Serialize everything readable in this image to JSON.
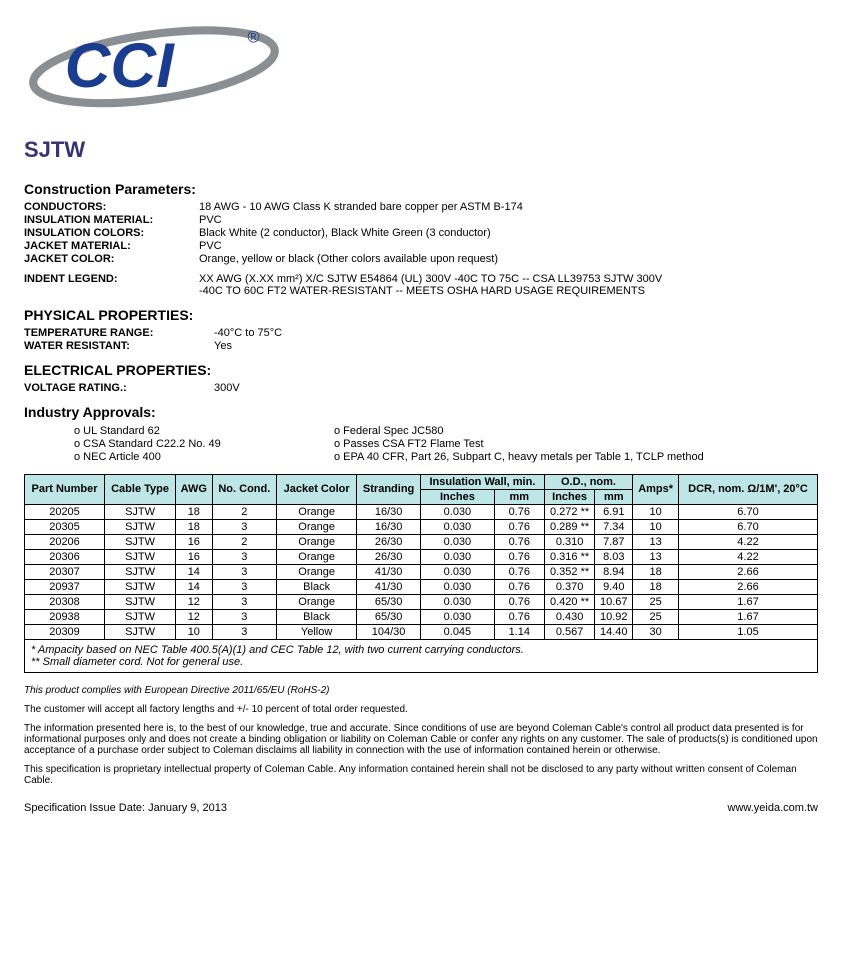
{
  "logo": {
    "text_color": "#1a3d8f",
    "swoosh_color": "#8a8f94",
    "trademark": "®"
  },
  "title": "SJTW",
  "construction": {
    "heading": "Construction Parameters:",
    "items": [
      {
        "label": "CONDUCTORS:",
        "value": "18 AWG - 10 AWG Class K stranded bare copper per ASTM B-174"
      },
      {
        "label": "INSULATION MATERIAL:",
        "value": "PVC"
      },
      {
        "label": "INSULATION COLORS:",
        "value": "Black White (2 conductor), Black White Green (3 conductor)"
      },
      {
        "label": "JACKET MATERIAL:",
        "value": "PVC"
      },
      {
        "label": "JACKET COLOR:",
        "value": "Orange, yellow or black (Other colors available upon request)"
      }
    ],
    "indent_label": "INDENT LEGEND:",
    "indent_line1": "XX AWG (X.XX mm²) X/C SJTW E54864 (UL) 300V -40C TO 75C -- CSA LL39753 SJTW 300V",
    "indent_line2": "-40C TO 60C FT2 WATER-RESISTANT -- MEETS OSHA HARD USAGE REQUIREMENTS"
  },
  "physical": {
    "heading": "PHYSICAL PROPERTIES:",
    "items": [
      {
        "label": "TEMPERATURE RANGE:",
        "value": "-40°C to 75°C"
      },
      {
        "label": "WATER RESISTANT:",
        "value": "Yes"
      }
    ]
  },
  "electrical": {
    "heading": "ELECTRICAL PROPERTIES:",
    "items": [
      {
        "label": "VOLTAGE RATING.:",
        "value": "300V"
      }
    ]
  },
  "approvals": {
    "heading": "Industry Approvals:",
    "col1": [
      "o UL Standard 62",
      "o CSA Standard C22.2 No. 49",
      "o NEC Article 400"
    ],
    "col2": [
      "o Federal Spec JC580",
      "o Passes CSA FT2 Flame Test",
      "o EPA 40 CFR, Part 26, Subpart C, heavy metals per Table 1, TCLP method"
    ]
  },
  "table": {
    "header_bg": "#bfe6e6",
    "top_headers": {
      "part": "Part Number",
      "cable": "Cable Type",
      "awg": "AWG",
      "cond": "No. Cond.",
      "jacket": "Jacket Color",
      "stranding": "Stranding",
      "insul": "Insulation Wall, min.",
      "od": "O.D., nom.",
      "amps": "Amps*",
      "dcr": "DCR, nom. Ω/1M', 20°C",
      "inches": "Inches",
      "mm": "mm"
    },
    "rows": [
      [
        "20205",
        "SJTW",
        "18",
        "2",
        "Orange",
        "16/30",
        "0.030",
        "0.76",
        "0.272 **",
        "6.91",
        "10",
        "6.70"
      ],
      [
        "20305",
        "SJTW",
        "18",
        "3",
        "Orange",
        "16/30",
        "0.030",
        "0.76",
        "0.289 **",
        "7.34",
        "10",
        "6.70"
      ],
      [
        "20206",
        "SJTW",
        "16",
        "2",
        "Orange",
        "26/30",
        "0.030",
        "0.76",
        "0.310",
        "7.87",
        "13",
        "4.22"
      ],
      [
        "20306",
        "SJTW",
        "16",
        "3",
        "Orange",
        "26/30",
        "0.030",
        "0.76",
        "0.316 **",
        "8.03",
        "13",
        "4.22"
      ],
      [
        "20307",
        "SJTW",
        "14",
        "3",
        "Orange",
        "41/30",
        "0.030",
        "0.76",
        "0.352 **",
        "8.94",
        "18",
        "2.66"
      ],
      [
        "20937",
        "SJTW",
        "14",
        "3",
        "Black",
        "41/30",
        "0.030",
        "0.76",
        "0.370",
        "9.40",
        "18",
        "2.66"
      ],
      [
        "20308",
        "SJTW",
        "12",
        "3",
        "Orange",
        "65/30",
        "0.030",
        "0.76",
        "0.420 **",
        "10.67",
        "25",
        "1.67"
      ],
      [
        "20938",
        "SJTW",
        "12",
        "3",
        "Black",
        "65/30",
        "0.030",
        "0.76",
        "0.430",
        "10.92",
        "25",
        "1.67"
      ],
      [
        "20309",
        "SJTW",
        "10",
        "3",
        "Yellow",
        "104/30",
        "0.045",
        "1.14",
        "0.567",
        "14.40",
        "30",
        "1.05"
      ]
    ],
    "footnote1": "* Ampacity based on NEC Table 400.5(A)(1) and CEC Table 12, with two current carrying conductors.",
    "footnote2": "** Small diameter cord. Not for general use."
  },
  "disclaimer": {
    "p1": "This product complies with European Directive 2011/65/EU (RoHS-2)",
    "p2": "The customer will accept all factory lengths and +/- 10 percent of total order requested.",
    "p3": "The information presented here is, to the best of our knowledge, true and accurate.  Since conditions of use are beyond Coleman Cable's control all product data presented is for informational purposes only and does not create a binding obligation or liability on Coleman Cable or confer any rights on any customer.  The sale of products(s) is conditioned upon acceptance of a purchase order subject to Coleman disclaims all liability in connection with the use of information contained herein or otherwise.",
    "p4": "This specification is proprietary intellectual property of Coleman Cable.  Any information contained herein shall not be disclosed to any party without written consent of Coleman Cable."
  },
  "footer": {
    "issue": "Specification Issue Date:  January 9, 2013",
    "url": "www.yeida.com.tw"
  }
}
